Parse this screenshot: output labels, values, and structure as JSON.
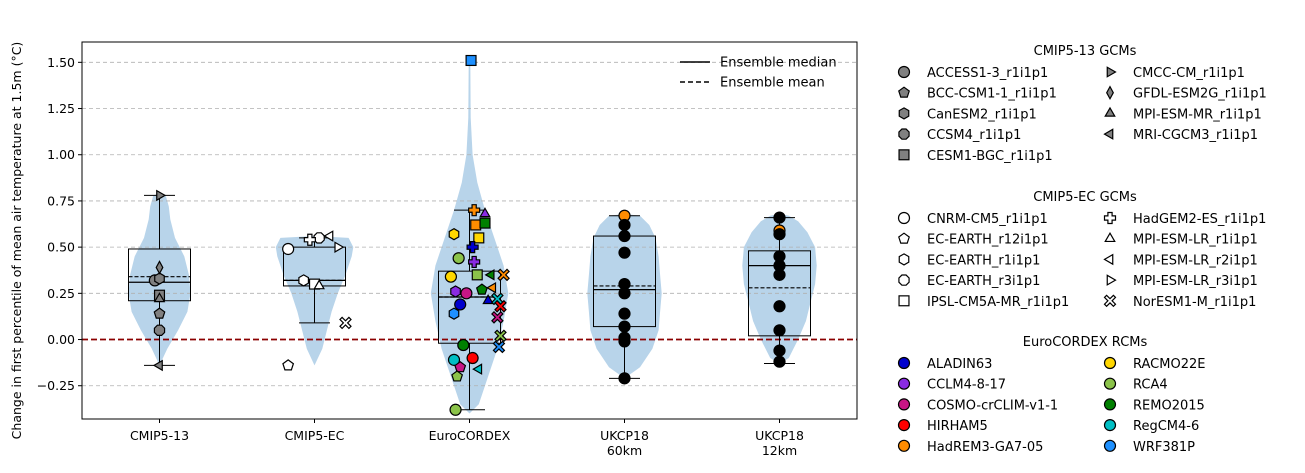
{
  "chart_data": {
    "type": "violin-box-scatter",
    "ylabel": "Change in first percentile of mean air temperature at 1.5m (°C)",
    "ylim": [
      -0.43,
      1.61
    ],
    "yticks": [
      -0.25,
      0.0,
      0.25,
      0.5,
      0.75,
      1.0,
      1.25,
      1.5
    ],
    "ytick_labels": [
      "−0.25",
      "0.00",
      "0.25",
      "0.50",
      "0.75",
      "1.00",
      "1.25",
      "1.50"
    ],
    "grid": "y dashed",
    "zero_line": {
      "y": 0,
      "color": "#8b0000",
      "style": "dashed"
    },
    "categories": [
      "CMIP5-13",
      "CMIP5-EC",
      "EuroCORDEX",
      "UKCP18\n60km",
      "UKCP18\n12km"
    ],
    "category_label_lines": [
      [
        "CMIP5-13"
      ],
      [
        "CMIP5-EC"
      ],
      [
        "EuroCORDEX"
      ],
      [
        "UKCP18",
        "60km"
      ],
      [
        "UKCP18",
        "12km"
      ]
    ],
    "violin_color": "#b8d4ea",
    "boxes": [
      {
        "q1": 0.21,
        "median": 0.31,
        "mean": 0.34,
        "q3": 0.49,
        "whisker_low": -0.14,
        "whisker_high": 0.78
      },
      {
        "q1": 0.29,
        "median": 0.32,
        "mean": 0.32,
        "q3": 0.5,
        "whisker_low": 0.09,
        "whisker_high": 0.55
      },
      {
        "q1": -0.02,
        "median": 0.23,
        "mean": 0.23,
        "q3": 0.37,
        "whisker_low": -0.38,
        "whisker_high": 0.7
      },
      {
        "q1": 0.07,
        "median": 0.27,
        "mean": 0.29,
        "q3": 0.56,
        "whisker_low": -0.21,
        "whisker_high": 0.67
      },
      {
        "q1": 0.02,
        "median": 0.4,
        "mean": 0.28,
        "q3": 0.48,
        "whisker_low": -0.13,
        "whisker_high": 0.66
      }
    ],
    "violins": [
      [
        [
          -0.14,
          0.0
        ],
        [
          -0.05,
          0.05
        ],
        [
          0.05,
          0.12
        ],
        [
          0.15,
          0.18
        ],
        [
          0.25,
          0.2
        ],
        [
          0.35,
          0.19
        ],
        [
          0.45,
          0.16
        ],
        [
          0.55,
          0.1
        ],
        [
          0.65,
          0.07
        ],
        [
          0.72,
          0.06
        ],
        [
          0.78,
          0.04
        ],
        [
          0.79,
          0.0
        ]
      ],
      [
        [
          -0.14,
          0.0
        ],
        [
          -0.05,
          0.05
        ],
        [
          0.05,
          0.08
        ],
        [
          0.15,
          0.11
        ],
        [
          0.25,
          0.15
        ],
        [
          0.35,
          0.2
        ],
        [
          0.45,
          0.24
        ],
        [
          0.5,
          0.25
        ],
        [
          0.55,
          0.22
        ],
        [
          0.56,
          0.0
        ]
      ],
      [
        [
          -0.4,
          0.0
        ],
        [
          -0.35,
          0.06
        ],
        [
          -0.2,
          0.12
        ],
        [
          -0.05,
          0.18
        ],
        [
          0.1,
          0.22
        ],
        [
          0.25,
          0.25
        ],
        [
          0.4,
          0.22
        ],
        [
          0.55,
          0.16
        ],
        [
          0.7,
          0.1
        ],
        [
          0.85,
          0.05
        ],
        [
          1.0,
          0.02
        ],
        [
          1.2,
          0.008
        ],
        [
          1.5,
          0.005
        ],
        [
          1.52,
          0.0
        ]
      ],
      [
        [
          -0.21,
          0.0
        ],
        [
          -0.15,
          0.1
        ],
        [
          -0.05,
          0.18
        ],
        [
          0.05,
          0.22
        ],
        [
          0.15,
          0.23
        ],
        [
          0.25,
          0.24
        ],
        [
          0.35,
          0.23
        ],
        [
          0.45,
          0.22
        ],
        [
          0.55,
          0.2
        ],
        [
          0.62,
          0.16
        ],
        [
          0.67,
          0.1
        ],
        [
          0.68,
          0.0
        ]
      ],
      [
        [
          -0.13,
          0.0
        ],
        [
          -0.1,
          0.06
        ],
        [
          0.0,
          0.12
        ],
        [
          0.1,
          0.17
        ],
        [
          0.2,
          0.2
        ],
        [
          0.3,
          0.23
        ],
        [
          0.4,
          0.24
        ],
        [
          0.5,
          0.23
        ],
        [
          0.58,
          0.18
        ],
        [
          0.64,
          0.12
        ],
        [
          0.67,
          0.06
        ],
        [
          0.68,
          0.0
        ]
      ]
    ],
    "points": [
      [
        {
          "dx": -0.03,
          "y": 0.32,
          "m": "circle",
          "c": "#808080"
        },
        {
          "dx": 0.0,
          "y": 0.14,
          "m": "pentagon",
          "c": "#808080"
        },
        {
          "dx": 0.0,
          "y": 0.33,
          "m": "hexagon",
          "c": "#808080"
        },
        {
          "dx": 0.0,
          "y": 0.05,
          "m": "octagon",
          "c": "#808080"
        },
        {
          "dx": 0.0,
          "y": 0.24,
          "m": "square",
          "c": "#808080"
        },
        {
          "dx": 0.0,
          "y": 0.78,
          "m": "tri-right",
          "c": "#808080"
        },
        {
          "dx": 0.0,
          "y": 0.39,
          "m": "thin-diamond",
          "c": "#808080"
        },
        {
          "dx": 0.0,
          "y": 0.22,
          "m": "tri-up",
          "c": "#808080"
        },
        {
          "dx": 0.0,
          "y": -0.14,
          "m": "tri-left",
          "c": "#808080"
        }
      ],
      [
        {
          "dx": -0.17,
          "y": 0.49,
          "m": "circle",
          "c": "#ffffff"
        },
        {
          "dx": -0.17,
          "y": -0.14,
          "m": "pentagon",
          "c": "#ffffff"
        },
        {
          "dx": -0.07,
          "y": 0.32,
          "m": "hexagon",
          "c": "#ffffff"
        },
        {
          "dx": 0.03,
          "y": 0.55,
          "m": "octagon",
          "c": "#ffffff"
        },
        {
          "dx": 0.0,
          "y": 0.3,
          "m": "square",
          "c": "#ffffff"
        },
        {
          "dx": -0.03,
          "y": 0.54,
          "m": "plus",
          "c": "#ffffff"
        },
        {
          "dx": 0.03,
          "y": 0.29,
          "m": "tri-up",
          "c": "#ffffff"
        },
        {
          "dx": 0.1,
          "y": 0.56,
          "m": "tri-left",
          "c": "#ffffff"
        },
        {
          "dx": 0.15,
          "y": 0.5,
          "m": "tri-right",
          "c": "#ffffff"
        },
        {
          "dx": 0.2,
          "y": 0.09,
          "m": "x",
          "c": "#ffffff"
        }
      ],
      [
        {
          "dx": -0.12,
          "y": 0.34,
          "m": "circle",
          "c": "#ffd700"
        },
        {
          "dx": -0.1,
          "y": -0.11,
          "m": "circle",
          "c": "#00bfc4"
        },
        {
          "dx": -0.07,
          "y": 0.44,
          "m": "circle",
          "c": "#8bc34a"
        },
        {
          "dx": -0.06,
          "y": 0.19,
          "m": "circle",
          "c": "#0000cd"
        },
        {
          "dx": -0.04,
          "y": -0.03,
          "m": "circle",
          "c": "#008000"
        },
        {
          "dx": -0.02,
          "y": 0.25,
          "m": "circle",
          "c": "#c71585"
        },
        {
          "dx": 0.02,
          "y": -0.1,
          "m": "circle",
          "c": "#ff0000"
        },
        {
          "dx": 0.04,
          "y": 0.62,
          "m": "square",
          "c": "#ff8c00"
        },
        {
          "dx": 0.06,
          "y": 0.55,
          "m": "square",
          "c": "#ffd700"
        },
        {
          "dx": 0.05,
          "y": 0.35,
          "m": "square",
          "c": "#8bc34a"
        },
        {
          "dx": 0.1,
          "y": 0.63,
          "m": "square",
          "c": "#008000"
        },
        {
          "dx": 0.01,
          "y": 1.51,
          "m": "square",
          "c": "#1e90ff"
        },
        {
          "dx": 0.1,
          "y": 0.68,
          "m": "tri-up",
          "c": "#8a2be2"
        },
        {
          "dx": 0.12,
          "y": 0.21,
          "m": "tri-up",
          "c": "#0000cd"
        },
        {
          "dx": 0.14,
          "y": 0.35,
          "m": "tri-left",
          "c": "#008000"
        },
        {
          "dx": 0.15,
          "y": 0.28,
          "m": "tri-left",
          "c": "#ff8c00"
        },
        {
          "dx": 0.06,
          "y": -0.16,
          "m": "tri-left",
          "c": "#00bfc4"
        },
        {
          "dx": 0.18,
          "y": 0.22,
          "m": "x",
          "c": "#00bfc4"
        },
        {
          "dx": 0.2,
          "y": 0.02,
          "m": "x",
          "c": "#8bc34a"
        },
        {
          "dx": 0.19,
          "y": -0.04,
          "m": "x",
          "c": "#1e90ff"
        },
        {
          "dx": 0.2,
          "y": 0.18,
          "m": "x",
          "c": "#ff0000"
        },
        {
          "dx": 0.18,
          "y": 0.12,
          "m": "x",
          "c": "#c71585"
        },
        {
          "dx": 0.22,
          "y": 0.35,
          "m": "x",
          "c": "#ff8c00"
        },
        {
          "dx": 0.03,
          "y": 0.7,
          "m": "plus",
          "c": "#ff8c00"
        },
        {
          "dx": 0.02,
          "y": 0.5,
          "m": "plus",
          "c": "#0000cd"
        },
        {
          "dx": 0.03,
          "y": 0.42,
          "m": "plus",
          "c": "#8a2be2"
        },
        {
          "dx": -0.1,
          "y": 0.57,
          "m": "hexagon",
          "c": "#ffd700"
        },
        {
          "dx": -0.09,
          "y": 0.26,
          "m": "hexagon",
          "c": "#8a2be2"
        },
        {
          "dx": -0.1,
          "y": 0.14,
          "m": "hexagon",
          "c": "#1e90ff"
        },
        {
          "dx": -0.06,
          "y": -0.15,
          "m": "pentagon",
          "c": "#c71585"
        },
        {
          "dx": -0.08,
          "y": -0.2,
          "m": "pentagon",
          "c": "#8bc34a"
        },
        {
          "dx": -0.09,
          "y": -0.38,
          "m": "circle",
          "c": "#8bc34a"
        },
        {
          "dx": 0.08,
          "y": 0.27,
          "m": "pentagon",
          "c": "#008000"
        }
      ],
      [
        {
          "dx": 0.0,
          "y": 0.67,
          "m": "circle",
          "c": "#ff8c00"
        },
        {
          "dx": 0.0,
          "y": 0.62,
          "m": "circle",
          "c": "#000000"
        },
        {
          "dx": 0.0,
          "y": 0.56,
          "m": "circle",
          "c": "#000000"
        },
        {
          "dx": 0.0,
          "y": 0.47,
          "m": "circle",
          "c": "#000000"
        },
        {
          "dx": 0.0,
          "y": 0.3,
          "m": "circle",
          "c": "#000000"
        },
        {
          "dx": 0.0,
          "y": 0.25,
          "m": "circle",
          "c": "#000000"
        },
        {
          "dx": 0.0,
          "y": 0.14,
          "m": "circle",
          "c": "#000000"
        },
        {
          "dx": 0.0,
          "y": 0.07,
          "m": "circle",
          "c": "#000000"
        },
        {
          "dx": 0.0,
          "y": 0.01,
          "m": "circle",
          "c": "#000000"
        },
        {
          "dx": 0.0,
          "y": -0.01,
          "m": "circle",
          "c": "#000000"
        },
        {
          "dx": 0.0,
          "y": -0.21,
          "m": "circle",
          "c": "#000000"
        }
      ],
      [
        {
          "dx": 0.0,
          "y": 0.66,
          "m": "circle",
          "c": "#000000"
        },
        {
          "dx": 0.0,
          "y": 0.59,
          "m": "circle",
          "c": "#ff8c00"
        },
        {
          "dx": 0.0,
          "y": 0.57,
          "m": "circle",
          "c": "#000000"
        },
        {
          "dx": 0.0,
          "y": 0.45,
          "m": "circle",
          "c": "#000000"
        },
        {
          "dx": 0.0,
          "y": 0.4,
          "m": "circle",
          "c": "#000000"
        },
        {
          "dx": 0.0,
          "y": 0.35,
          "m": "circle",
          "c": "#000000"
        },
        {
          "dx": 0.0,
          "y": 0.18,
          "m": "circle",
          "c": "#000000"
        },
        {
          "dx": 0.0,
          "y": 0.05,
          "m": "circle",
          "c": "#000000"
        },
        {
          "dx": 0.0,
          "y": -0.06,
          "m": "circle",
          "c": "#000000"
        },
        {
          "dx": 0.0,
          "y": -0.12,
          "m": "circle",
          "c": "#000000"
        }
      ]
    ],
    "line_legend": [
      {
        "label": "Ensemble median",
        "style": "solid"
      },
      {
        "label": "Ensemble mean",
        "style": "dashed"
      }
    ],
    "legend_groups": [
      {
        "title": "CMIP5-13 GCMs",
        "columns": [
          [
            {
              "label": "ACCESS1-3_r1i1p1",
              "m": "circle",
              "c": "#808080"
            },
            {
              "label": "BCC-CSM1-1_r1i1p1",
              "m": "pentagon",
              "c": "#808080"
            },
            {
              "label": "CanESM2_r1i1p1",
              "m": "hexagon",
              "c": "#808080"
            },
            {
              "label": "CCSM4_r1i1p1",
              "m": "octagon",
              "c": "#808080"
            },
            {
              "label": "CESM1-BGC_r1i1p1",
              "m": "square",
              "c": "#808080"
            }
          ],
          [
            {
              "label": "CMCC-CM_r1i1p1",
              "m": "tri-right",
              "c": "#808080"
            },
            {
              "label": "GFDL-ESM2G_r1i1p1",
              "m": "thin-diamond",
              "c": "#808080"
            },
            {
              "label": "MPI-ESM-MR_r1i1p1",
              "m": "tri-up",
              "c": "#808080"
            },
            {
              "label": "MRI-CGCM3_r1i1p1",
              "m": "tri-left",
              "c": "#808080"
            }
          ]
        ]
      },
      {
        "title": "CMIP5-EC GCMs",
        "columns": [
          [
            {
              "label": "CNRM-CM5_r1i1p1",
              "m": "circle",
              "c": "#ffffff"
            },
            {
              "label": "EC-EARTH_r12i1p1",
              "m": "pentagon",
              "c": "#ffffff"
            },
            {
              "label": "EC-EARTH_r1i1p1",
              "m": "hexagon",
              "c": "#ffffff"
            },
            {
              "label": "EC-EARTH_r3i1p1",
              "m": "octagon",
              "c": "#ffffff"
            },
            {
              "label": "IPSL-CM5A-MR_r1i1p1",
              "m": "square",
              "c": "#ffffff"
            }
          ],
          [
            {
              "label": "HadGEM2-ES_r1i1p1",
              "m": "plus",
              "c": "#ffffff"
            },
            {
              "label": "MPI-ESM-LR_r1i1p1",
              "m": "tri-up",
              "c": "#ffffff"
            },
            {
              "label": "MPI-ESM-LR_r2i1p1",
              "m": "tri-left",
              "c": "#ffffff"
            },
            {
              "label": "MPI-ESM-LR_r3i1p1",
              "m": "tri-right",
              "c": "#ffffff"
            },
            {
              "label": "NorESM1-M_r1i1p1",
              "m": "x",
              "c": "#ffffff"
            }
          ]
        ]
      },
      {
        "title": "EuroCORDEX RCMs",
        "columns": [
          [
            {
              "label": "ALADIN63",
              "m": "circle",
              "c": "#0000cd"
            },
            {
              "label": "CCLM4-8-17",
              "m": "circle",
              "c": "#8a2be2"
            },
            {
              "label": "COSMO-crCLIM-v1-1",
              "m": "circle",
              "c": "#c71585"
            },
            {
              "label": "HIRHAM5",
              "m": "circle",
              "c": "#ff0000"
            },
            {
              "label": "HadREM3-GA7-05",
              "m": "circle",
              "c": "#ff8c00"
            }
          ],
          [
            {
              "label": "RACMO22E",
              "m": "circle",
              "c": "#ffd700"
            },
            {
              "label": "RCA4",
              "m": "circle",
              "c": "#8bc34a"
            },
            {
              "label": "REMO2015",
              "m": "circle",
              "c": "#008000"
            },
            {
              "label": "RegCM4-6",
              "m": "circle",
              "c": "#00bfc4"
            },
            {
              "label": "WRF381P",
              "m": "circle",
              "c": "#1e90ff"
            }
          ]
        ]
      }
    ]
  }
}
